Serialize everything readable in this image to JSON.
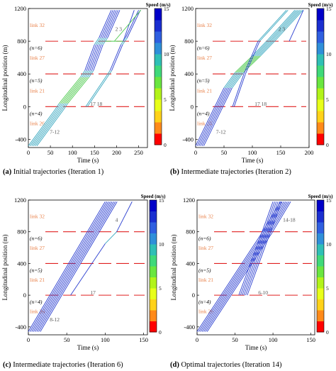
{
  "panels": [
    {
      "caption_letter": "(a)",
      "caption_text": " Initial trajectories (Iteration 1)",
      "xlabel": "Time (s)",
      "ylabel": "Longitudinal position (m)",
      "cbar_title": "Speed (m/s)",
      "cbar_ticks": [
        "15",
        "10",
        "5",
        "0"
      ],
      "links": [
        "link 32",
        "link 27",
        "link 21",
        "link 26"
      ],
      "n_labels": [
        "(n=6)",
        "(n=5)",
        "(n=4)"
      ],
      "vehicle_labels": [
        "2 3",
        "17 18",
        "7-12"
      ],
      "chart_data": {
        "type": "line",
        "xlim": [
          0,
          270
        ],
        "ylim": [
          -500,
          1200
        ],
        "xticks": [
          0,
          50,
          100,
          150,
          200,
          250
        ],
        "yticks": [
          -400,
          0,
          400,
          800,
          1200
        ],
        "stoplines": [
          800,
          400,
          0
        ],
        "main_platoon": {
          "count": 6,
          "points": [
            [
              0,
              -480
            ],
            [
              60,
              -40
            ],
            [
              70,
              40
            ],
            [
              118,
              360
            ],
            [
              128,
              440
            ],
            [
              150,
              760
            ],
            [
              160,
              840
            ],
            [
              188,
              1180
            ]
          ]
        },
        "second_platoon": {
          "count": 2,
          "points": [
            [
              130,
              0
            ],
            [
              175,
              360
            ],
            [
              185,
              440
            ],
            [
              210,
              760
            ],
            [
              220,
              840
            ],
            [
              250,
              1180
            ]
          ]
        },
        "lead_vehicles": [
          {
            "points": [
              [
                175,
                800
              ],
              [
                215,
                800
              ],
              [
                240,
                1180
              ]
            ]
          },
          {
            "points": [
              [
                195,
                800
              ],
              [
                255,
                1180
              ]
            ]
          }
        ]
      }
    },
    {
      "caption_letter": "(b)",
      "caption_text": " Intermediate trajectories (Iteration 2)",
      "xlabel": "Time (s)",
      "ylabel": "Longitudinal position (m)",
      "cbar_title": "Speed (m/s)",
      "cbar_ticks": [
        "15",
        "10",
        "5",
        "0"
      ],
      "links": [
        "link 32",
        "link 27",
        "link 21",
        "link 26"
      ],
      "n_labels": [
        "(n=6)",
        "(n=5)",
        "(n=4)"
      ],
      "vehicle_labels": [
        "2 3",
        "17 18",
        "7-12"
      ],
      "chart_data": {
        "type": "line",
        "xlim": [
          0,
          200
        ],
        "ylim": [
          -500,
          1200
        ],
        "xticks": [
          0,
          50,
          100,
          150,
          200
        ],
        "yticks": [
          -400,
          0,
          400,
          800,
          1200
        ],
        "stoplines": [
          800,
          400,
          0
        ],
        "main_platoon": {
          "count": 6,
          "points": [
            [
              0,
              -480
            ],
            [
              50,
              230
            ],
            [
              70,
              420
            ],
            [
              100,
              620
            ],
            [
              125,
              800
            ],
            [
              175,
              1180
            ]
          ]
        },
        "second_platoon": {
          "count": 2,
          "points": [
            [
              65,
              0
            ],
            [
              85,
              400
            ],
            [
              110,
              800
            ],
            [
              160,
              1180
            ]
          ]
        },
        "lead_vehicles": [
          {
            "points": [
              [
                165,
                800
              ],
              [
                190,
                1180
              ]
            ]
          }
        ]
      }
    },
    {
      "caption_letter": "(c)",
      "caption_text": " Intermediate trajectories (Iteration 6)",
      "xlabel": "Time (s)",
      "ylabel": "Longitudinal position (m)",
      "cbar_title": "Speed (m/s)",
      "cbar_ticks": [
        "15",
        "10",
        "5",
        "0"
      ],
      "links": [
        "link 32",
        "link 27",
        "link 21",
        "link 26"
      ],
      "n_labels": [
        "(n=6)",
        "(n=5)",
        "(n=4)"
      ],
      "vehicle_labels": [
        "4",
        "17",
        "8-12"
      ],
      "chart_data": {
        "type": "line",
        "xlim": [
          0,
          155
        ],
        "ylim": [
          -500,
          1200
        ],
        "xticks": [
          0,
          50,
          100,
          150
        ],
        "yticks": [
          -400,
          0,
          400,
          800,
          1200
        ],
        "stoplines": [
          800,
          400,
          0
        ],
        "main_platoon": {
          "count": 8,
          "points": [
            [
              0,
              -460
            ],
            [
              100,
              1180
            ]
          ]
        },
        "second_platoon": {
          "count": 1,
          "points": [
            [
              55,
              0
            ],
            [
              100,
              650
            ],
            [
              115,
              800
            ],
            [
              135,
              1180
            ]
          ]
        },
        "lead_vehicles": []
      }
    },
    {
      "caption_letter": "(d)",
      "caption_text": " Optimal trajectories (Iteration 14)",
      "xlabel": "Time (s)",
      "ylabel": "Longitudinal position (m)",
      "cbar_title": "Speed (m/s)",
      "cbar_ticks": [
        "15",
        "10",
        "5",
        "0"
      ],
      "links": [
        "link 32",
        "link 27",
        "link 21",
        "link 26"
      ],
      "n_labels": [
        "(n=6)",
        "(n=5)",
        "(n=4)"
      ],
      "vehicle_labels": [
        "14-18",
        "6-10"
      ],
      "chart_data": {
        "type": "line",
        "xlim": [
          0,
          155
        ],
        "ylim": [
          -500,
          1200
        ],
        "xticks": [
          0,
          50,
          100,
          150
        ],
        "yticks": [
          -400,
          0,
          400,
          800,
          1200
        ],
        "stoplines": [
          800,
          400,
          0
        ],
        "main_platoon": {
          "count": 7,
          "points": [
            [
              0,
              -460
            ],
            [
              85,
              780
            ],
            [
              110,
              1180
            ]
          ]
        },
        "second_platoon": {
          "count": 6,
          "points": [
            [
              55,
              0
            ],
            [
              85,
              780
            ],
            [
              100,
              1180
            ]
          ]
        },
        "lead_vehicles": []
      }
    }
  ]
}
